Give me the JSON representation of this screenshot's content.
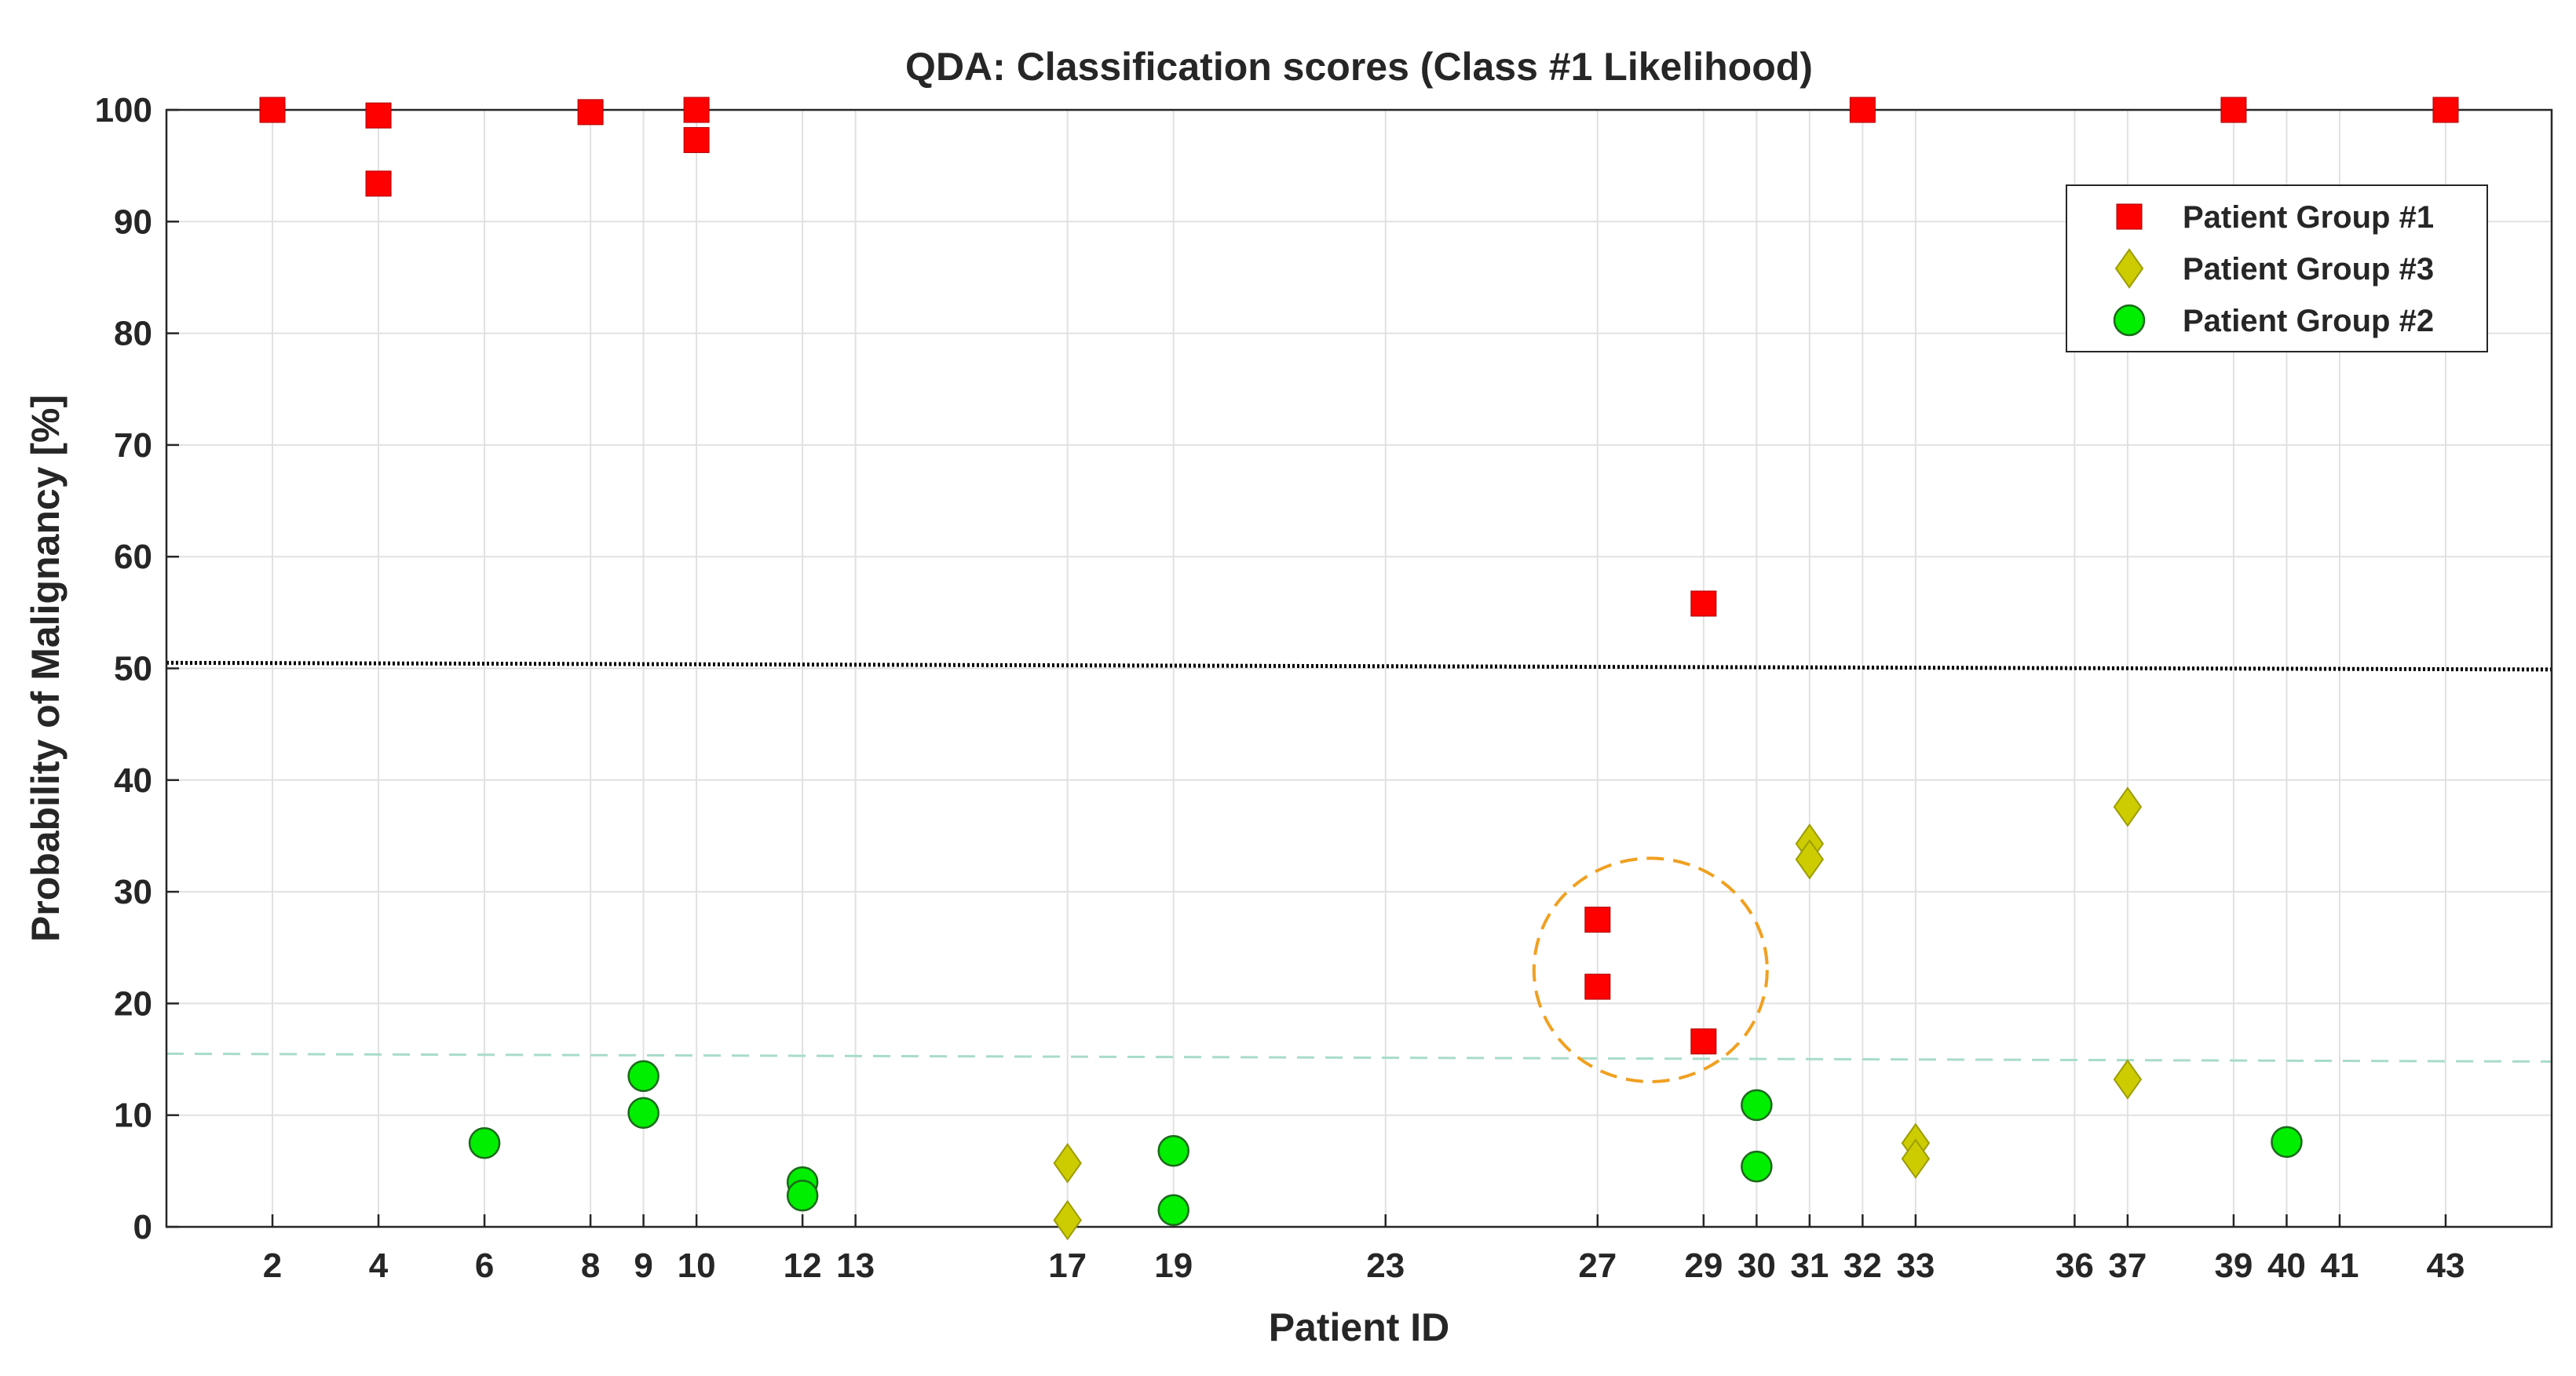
{
  "chart_data": {
    "type": "scatter",
    "title": "QDA: Classification scores (Class #1 Likelihood)",
    "xlabel": "Patient ID",
    "ylabel": "Probability of Malignancy [%]",
    "xlim": [
      0,
      45
    ],
    "ylim": [
      0,
      100
    ],
    "xticks": [
      2,
      4,
      6,
      8,
      9,
      10,
      12,
      13,
      17,
      19,
      23,
      27,
      29,
      30,
      31,
      32,
      33,
      36,
      37,
      39,
      40,
      41,
      43
    ],
    "yticks": [
      0,
      10,
      20,
      30,
      40,
      50,
      60,
      70,
      80,
      90,
      100
    ],
    "grid": true,
    "legend_position": "top-right",
    "series": [
      {
        "name": "Patient Group #1",
        "marker": "square",
        "color": "#ff0000",
        "points": [
          {
            "x": 2,
            "y": 100
          },
          {
            "x": 4,
            "y": 99.5
          },
          {
            "x": 4,
            "y": 93.4
          },
          {
            "x": 8,
            "y": 99.8
          },
          {
            "x": 10,
            "y": 100
          },
          {
            "x": 10,
            "y": 97.3
          },
          {
            "x": 27,
            "y": 27.5
          },
          {
            "x": 27,
            "y": 21.5
          },
          {
            "x": 29,
            "y": 55.8
          },
          {
            "x": 29,
            "y": 16.6
          },
          {
            "x": 32,
            "y": 100
          },
          {
            "x": 39,
            "y": 100
          },
          {
            "x": 43,
            "y": 100
          }
        ]
      },
      {
        "name": "Patient Group #3",
        "marker": "diamond",
        "color": "#cccc00",
        "points": [
          {
            "x": 17,
            "y": 5.7
          },
          {
            "x": 17,
            "y": 0.6
          },
          {
            "x": 31,
            "y": 34.3
          },
          {
            "x": 31,
            "y": 32.9
          },
          {
            "x": 33,
            "y": 7.5
          },
          {
            "x": 33,
            "y": 6.1
          },
          {
            "x": 37,
            "y": 37.6
          },
          {
            "x": 37,
            "y": 13.2
          }
        ]
      },
      {
        "name": "Patient Group #2",
        "marker": "circle",
        "color": "#00ee00",
        "points": [
          {
            "x": 6,
            "y": 7.5
          },
          {
            "x": 9,
            "y": 13.5
          },
          {
            "x": 9,
            "y": 10.2
          },
          {
            "x": 12,
            "y": 4.0
          },
          {
            "x": 12,
            "y": 2.8
          },
          {
            "x": 19,
            "y": 6.8
          },
          {
            "x": 19,
            "y": 1.5
          },
          {
            "x": 30,
            "y": 10.9
          },
          {
            "x": 30,
            "y": 5.4
          },
          {
            "x": 40,
            "y": 7.6
          }
        ]
      }
    ],
    "reference_lines": [
      {
        "name": "decision-threshold-line",
        "style": "dotted",
        "color": "#000000",
        "y_start": 50.5,
        "y_end": 49.9
      },
      {
        "name": "lower-threshold-line",
        "style": "dashed",
        "color": "#a8dcc8",
        "y_start": 15.5,
        "y_end": 14.8
      }
    ],
    "annotations": [
      {
        "name": "highlight-circle",
        "shape": "dashed-circle",
        "color": "#f0a020",
        "center_x": 28.0,
        "center_y": 23.0,
        "radius_x_units": 2.2,
        "radius_y_units": 10.0
      }
    ]
  }
}
